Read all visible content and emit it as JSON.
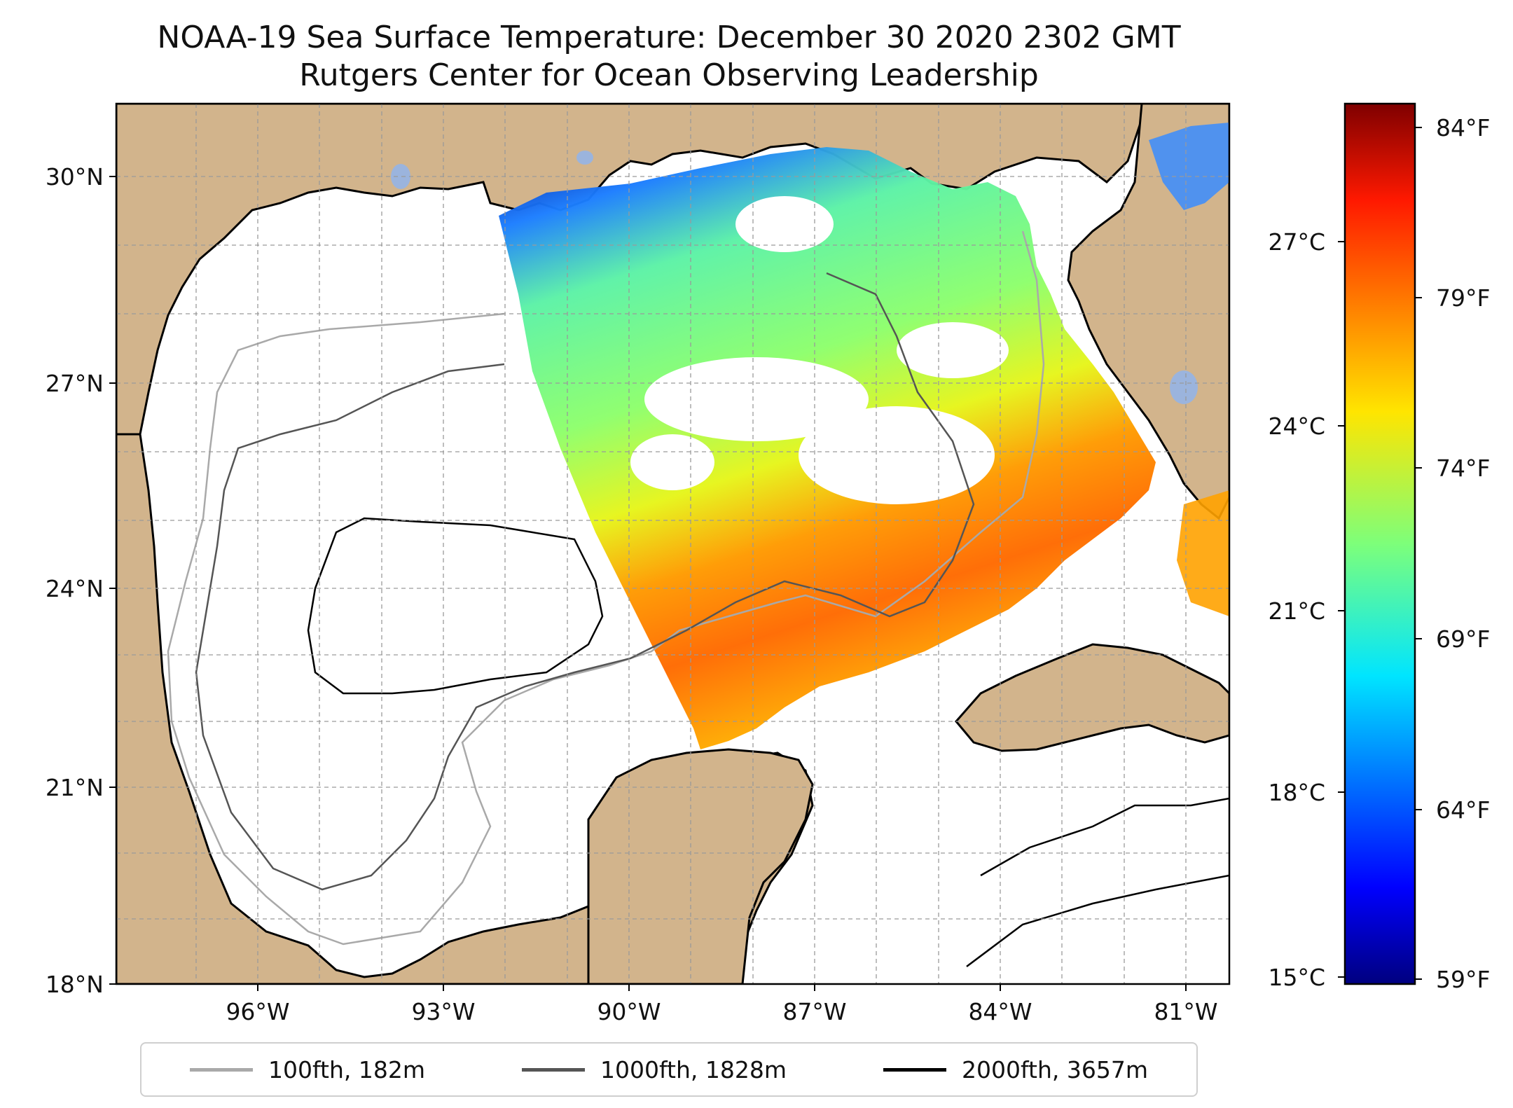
{
  "title": {
    "line1": "NOAA-19 Sea Surface Temperature: December 30 2020 2302 GMT",
    "line2": "Rutgers Center for Ocean Observing Leadership"
  },
  "map": {
    "region": "Gulf of Mexico",
    "lat_ticks": [
      "30°N",
      "27°N",
      "24°N",
      "21°N",
      "18°N"
    ],
    "lon_ticks": [
      "96°W",
      "93°W",
      "90°W",
      "87°W",
      "84°W",
      "81°W"
    ],
    "colors": {
      "land": "#d2b48c",
      "ocean_no_data": "#ffffff",
      "coast": "#000000",
      "lakes": "#9bb4dd"
    }
  },
  "colorbar": {
    "celsius_ticks": [
      "27°C",
      "24°C",
      "21°C",
      "18°C",
      "15°C"
    ],
    "fahrenheit_ticks": [
      "84°F",
      "79°F",
      "74°F",
      "69°F",
      "64°F",
      "59°F"
    ],
    "colormap": "jet"
  },
  "legend": {
    "items": [
      {
        "label": "100fth, 182m",
        "color": "#a9a9a9"
      },
      {
        "label": "1000fth, 1828m",
        "color": "#555555"
      },
      {
        "label": "2000fth, 3657m",
        "color": "#000000"
      }
    ]
  }
}
